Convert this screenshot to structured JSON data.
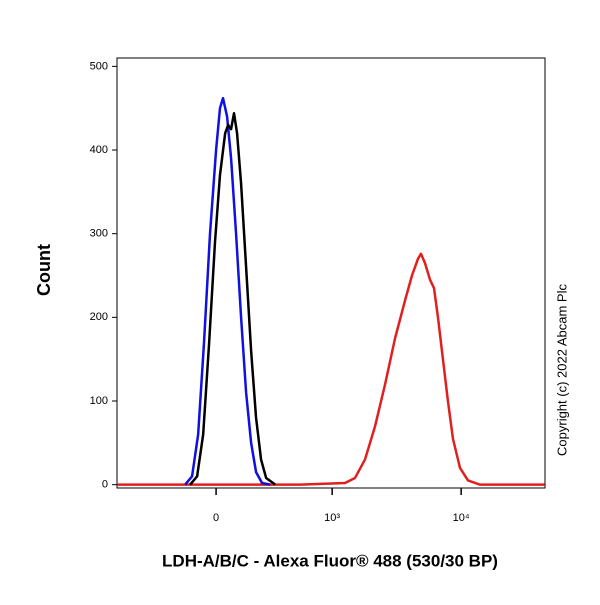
{
  "chart_data": {
    "type": "line",
    "xlabel": "LDH-A/B/C - Alexa Fluor® 488 (530/30 BP)",
    "ylabel": "Count",
    "annotation": "Copyright (c) 2022 Abcam Plc",
    "xscale": "biexponential",
    "xlim": [
      -730,
      44200
    ],
    "xticks": [
      0,
      {
        "value": 1000,
        "label": "10³"
      },
      {
        "value": 10000,
        "label": "10⁴"
      }
    ],
    "ylim": [
      -4,
      510
    ],
    "yticks": [
      0,
      100,
      200,
      300,
      400,
      500
    ],
    "series": [
      {
        "color": "#e02020",
        "x": [
          -720,
          548,
          1264,
          1514,
          1810,
          2169,
          2592,
          3095,
          3694,
          4180,
          4651,
          4905,
          5265,
          5755,
          6179,
          6630,
          7240,
          7910,
          8645,
          9800,
          11290,
          13960,
          44000
        ],
        "values": [
          0,
          0,
          2,
          8,
          30,
          70,
          120,
          175,
          220,
          250,
          270,
          276,
          265,
          245,
          235,
          200,
          150,
          100,
          55,
          20,
          5,
          0,
          0
        ]
      },
      {
        "color": "#1010e0",
        "x": [
          -150,
          -114,
          -84,
          -56,
          -28,
          0,
          18,
          32,
          51,
          70,
          94,
          119,
          145,
          172,
          200,
          236,
          289
        ],
        "values": [
          0,
          10,
          60,
          170,
          300,
          400,
          450,
          462,
          440,
          390,
          300,
          200,
          110,
          50,
          15,
          2,
          0
        ]
      },
      {
        "color": "#000000",
        "x": [
          -124,
          -89,
          -60,
          -32,
          -5,
          18,
          42,
          56,
          70,
          84,
          99,
          119,
          145,
          172,
          200,
          230,
          262,
          326
        ],
        "values": [
          0,
          10,
          60,
          170,
          290,
          370,
          420,
          430,
          425,
          444,
          420,
          360,
          260,
          160,
          80,
          30,
          8,
          0
        ]
      }
    ]
  }
}
